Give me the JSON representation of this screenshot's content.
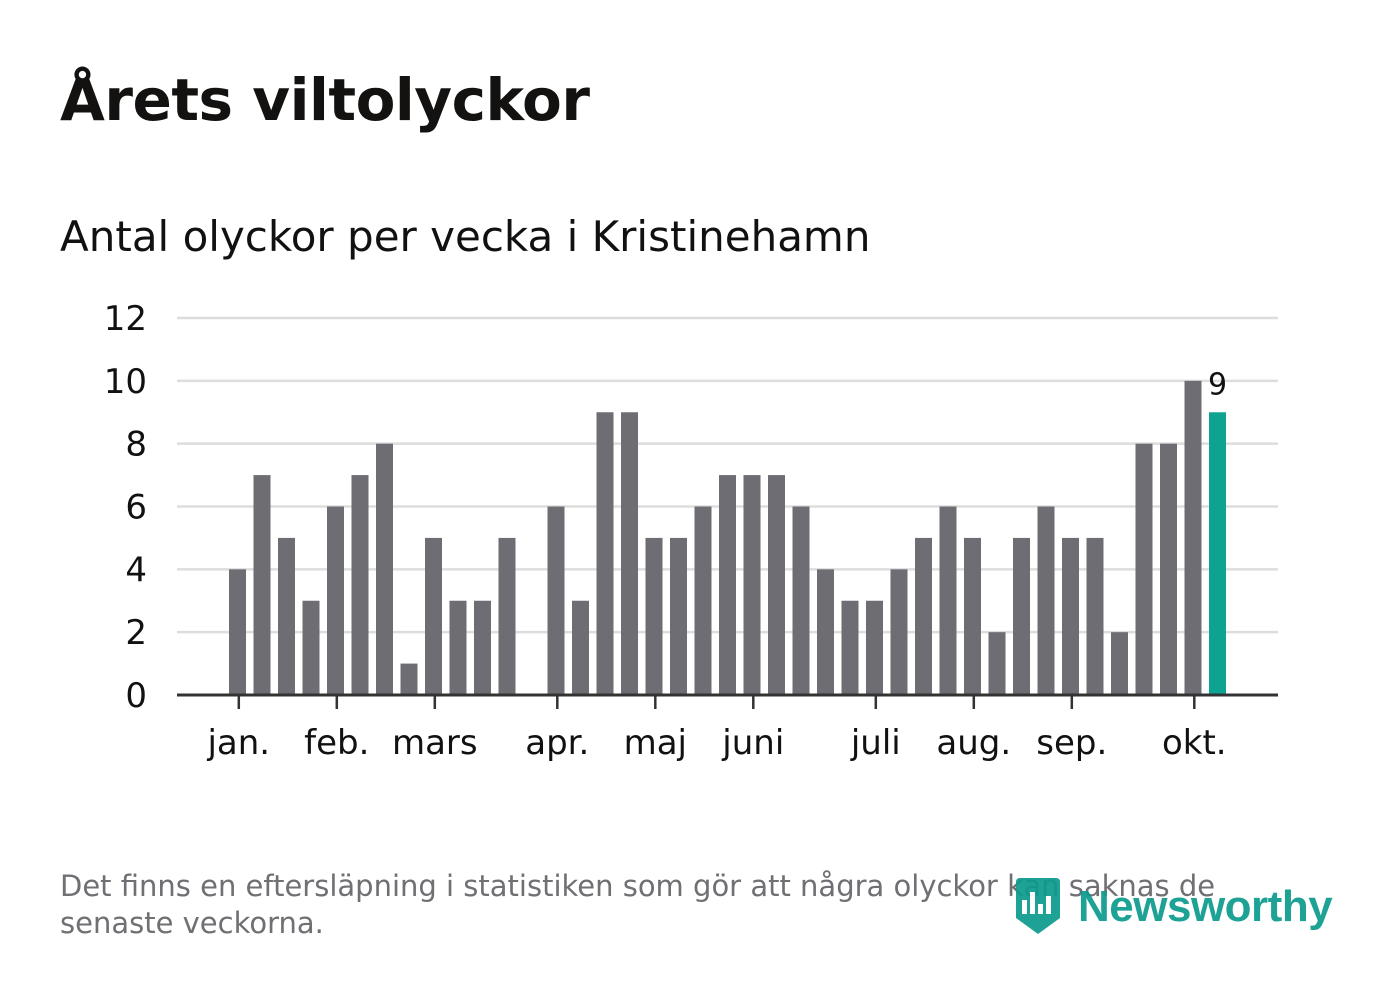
{
  "title": "Årets viltolyckor",
  "subtitle": "Antal olyckor per vecka i Kristinehamn",
  "footnote": "Det finns en eftersläpning i statistiken som gör att några olyckor kan saknas de senaste veckorna.",
  "logo": {
    "text": "Newsworthy",
    "icon": "newsworthy-chart-icon"
  },
  "colors": {
    "bar": "#6e6d73",
    "highlight": "#0ea293",
    "grid": "#dddddd",
    "axis": "#333333",
    "text": "#111111"
  },
  "chart_data": {
    "type": "bar",
    "title": "Antal olyckor per vecka i Kristinehamn",
    "xlabel": "",
    "ylabel": "",
    "ylim": [
      0,
      12
    ],
    "yticks": [
      "0",
      "2",
      "4",
      "6",
      "8",
      "10",
      "12"
    ],
    "grid": true,
    "values": [
      4,
      7,
      5,
      3,
      6,
      7,
      8,
      1,
      5,
      3,
      3,
      5,
      0,
      6,
      3,
      9,
      9,
      5,
      5,
      6,
      7,
      7,
      7,
      6,
      4,
      3,
      3,
      4,
      5,
      6,
      5,
      2,
      5,
      6,
      5,
      5,
      2,
      8,
      8,
      10,
      9
    ],
    "highlight_index": 40,
    "highlight_label": "9",
    "month_labels": [
      {
        "label": "jan.",
        "week": 0.4
      },
      {
        "label": "feb.",
        "week": 4.4
      },
      {
        "label": "mars",
        "week": 8.4
      },
      {
        "label": "apr.",
        "week": 13.4
      },
      {
        "label": "maj",
        "week": 17.4
      },
      {
        "label": "juni",
        "week": 21.4
      },
      {
        "label": "juli",
        "week": 26.4
      },
      {
        "label": "aug.",
        "week": 30.4
      },
      {
        "label": "sep.",
        "week": 34.4
      },
      {
        "label": "okt.",
        "week": 39.4
      }
    ]
  }
}
